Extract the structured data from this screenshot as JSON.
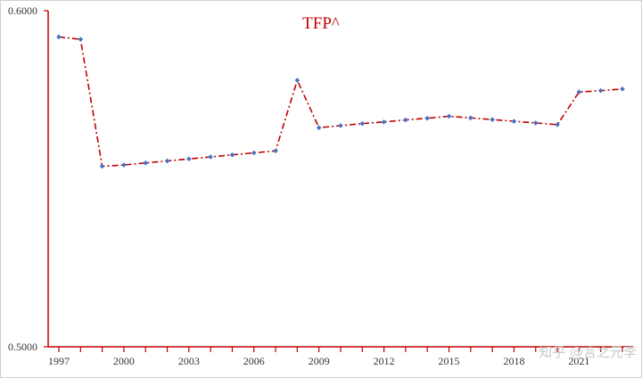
{
  "chart_data": {
    "type": "line",
    "title": "TFP^",
    "xlabel": "",
    "ylabel": "",
    "x": [
      1997,
      1998,
      1999,
      2000,
      2001,
      2002,
      2003,
      2004,
      2005,
      2006,
      2007,
      2008,
      2009,
      2010,
      2011,
      2012,
      2013,
      2014,
      2015,
      2016,
      2017,
      2018,
      2019,
      2020,
      2021,
      2022,
      2023
    ],
    "series": [
      {
        "values": [
          0.5922,
          0.5915,
          0.5537,
          0.5541,
          0.5547,
          0.5553,
          0.5559,
          0.5565,
          0.5571,
          0.5577,
          0.5583,
          0.5793,
          0.5652,
          0.5658,
          0.5664,
          0.5669,
          0.5675,
          0.568,
          0.5686,
          0.5681,
          0.5676,
          0.5671,
          0.5666,
          0.5661,
          0.5758,
          0.5762,
          0.5767
        ]
      }
    ],
    "x_ticks": [
      "1997",
      "2000",
      "2003",
      "2006",
      "2009",
      "2012",
      "2015",
      "2018",
      "2021"
    ],
    "y_ticks": [
      "0.6000",
      "0.5000"
    ],
    "xlim": [
      1997,
      2023
    ],
    "ylim": [
      0.5,
      0.6
    ],
    "grid": false,
    "legend": "none",
    "colors": {
      "line": "#c00000",
      "marker": "#4472c4",
      "axis": "#c00000",
      "title": "#c00000"
    }
  },
  "watermark": "知乎 @言之元李"
}
